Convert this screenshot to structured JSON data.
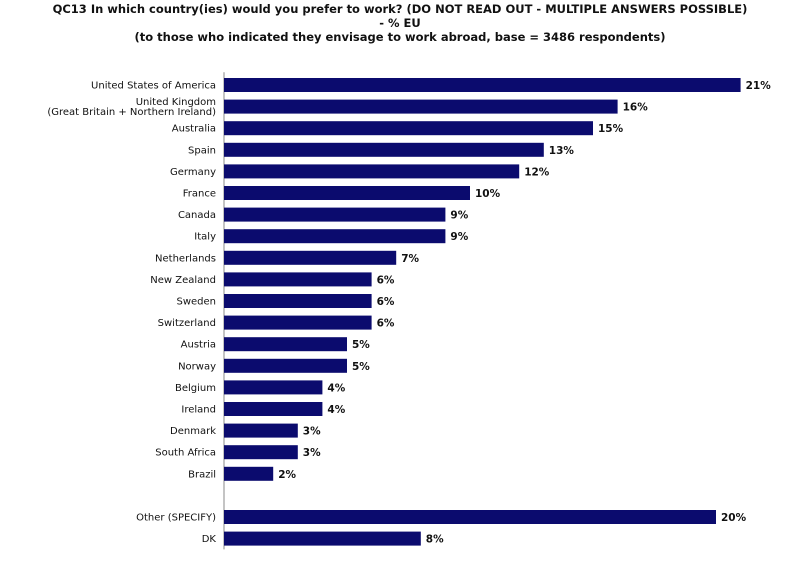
{
  "chart_data": {
    "type": "bar",
    "orientation": "horizontal",
    "title": "QC13 In which country(ies) would you prefer to work? (DO NOT READ OUT - MULTIPLE ANSWERS POSSIBLE)",
    "subtitle": "- % EU",
    "note": "(to those who indicated they envisage to  work abroad, base = 3486 respondents)",
    "value_suffix": "%",
    "xlim": [
      0,
      21
    ],
    "grid": false,
    "categories": [
      [
        "United States of America"
      ],
      [
        "United Kingdom",
        "(Great Britain + Northern Ireland)"
      ],
      [
        "Australia"
      ],
      [
        "Spain"
      ],
      [
        "Germany"
      ],
      [
        "France"
      ],
      [
        "Canada"
      ],
      [
        "Italy"
      ],
      [
        "Netherlands"
      ],
      [
        "New Zealand"
      ],
      [
        "Sweden"
      ],
      [
        "Switzerland"
      ],
      [
        "Austria"
      ],
      [
        "Norway"
      ],
      [
        "Belgium"
      ],
      [
        "Ireland"
      ],
      [
        "Denmark"
      ],
      [
        "South Africa"
      ],
      [
        "Brazil"
      ],
      [],
      [
        "Other (SPECIFY)"
      ],
      [
        "DK"
      ]
    ],
    "values": [
      21,
      16,
      15,
      13,
      12,
      10,
      9,
      9,
      7,
      6,
      6,
      6,
      5,
      5,
      4,
      4,
      3,
      3,
      2,
      null,
      20,
      8
    ],
    "colors": {
      "bar": "#0b0b6e"
    }
  }
}
